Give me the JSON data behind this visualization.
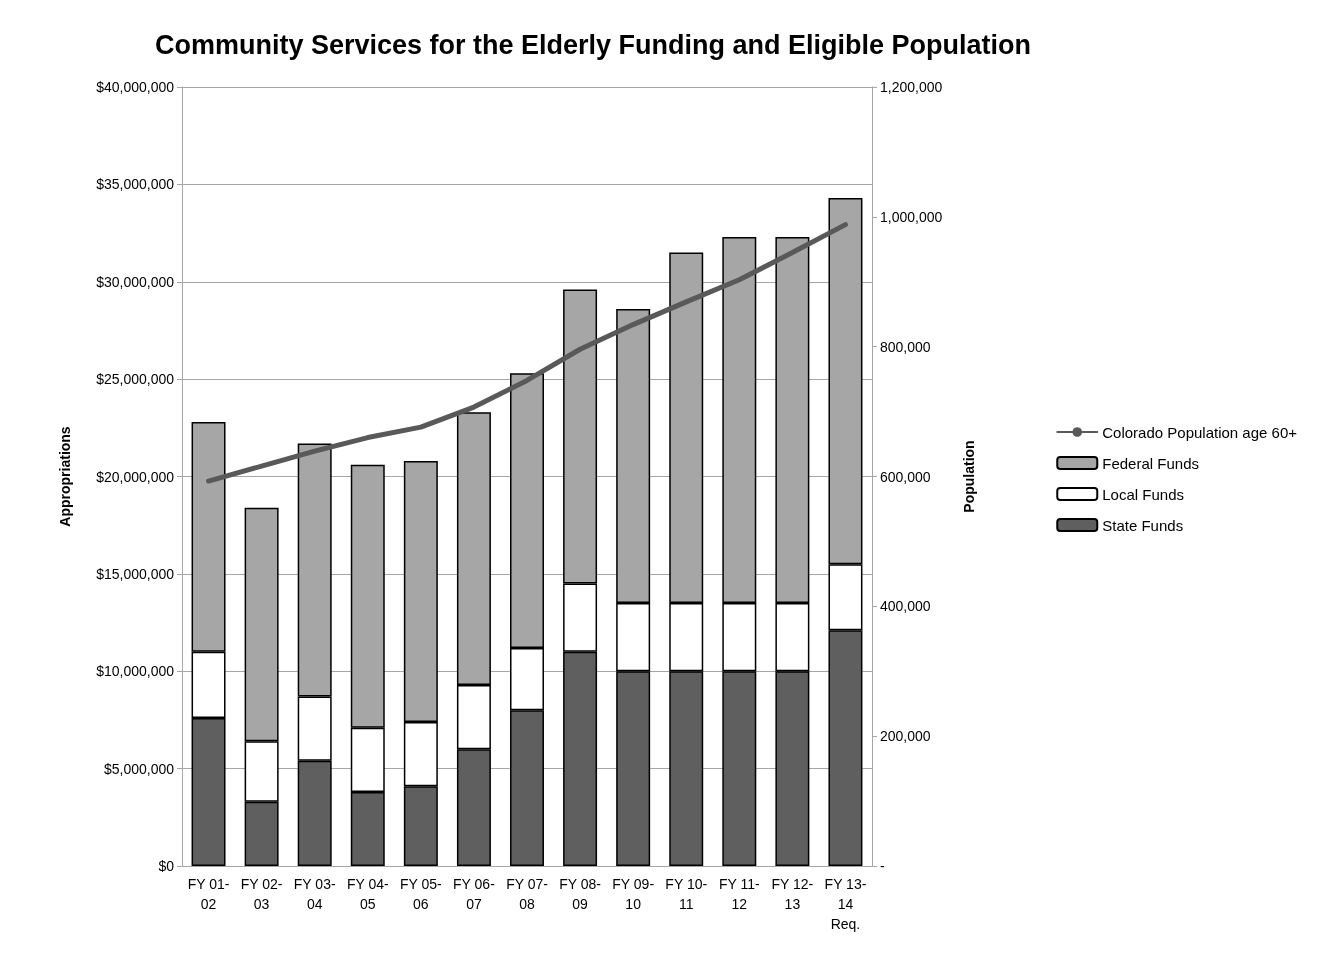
{
  "chart_data": {
    "type": "bar",
    "title": "Community Services for the Elderly Funding and Eligible Population",
    "ylabel": "Appropriations",
    "y2label": "Population",
    "categories": [
      "FY 01-02",
      "FY 02-03",
      "FY 03-04",
      "FY 04-05",
      "FY 05-06",
      "FY 06-07",
      "FY 07-08",
      "FY 08-09",
      "FY 09-10",
      "FY 10-11",
      "FY 11-12",
      "FY 12-13",
      "FY 13-14 Req."
    ],
    "stacked": true,
    "series": [
      {
        "name": "State Funds",
        "color": "#5f5f5f",
        "values": [
          7600000,
          3300000,
          5400000,
          3800000,
          4100000,
          6000000,
          8000000,
          11000000,
          10000000,
          10000000,
          10000000,
          10000000,
          12100000
        ]
      },
      {
        "name": "Local Funds",
        "color": "#ffffff",
        "values": [
          3400000,
          3100000,
          3300000,
          3300000,
          3300000,
          3300000,
          3200000,
          3500000,
          3500000,
          3500000,
          3500000,
          3500000,
          3400000
        ]
      },
      {
        "name": "Federal Funds",
        "color": "#a6a6a6",
        "values": [
          11800000,
          12000000,
          13000000,
          13500000,
          13400000,
          14000000,
          14100000,
          15100000,
          15100000,
          18000000,
          18800000,
          18800000,
          18800000
        ]
      },
      {
        "name": "Colorado Population age 60+",
        "type": "line",
        "axis": "y2",
        "color": "#595959",
        "values": [
          593000,
          616000,
          639000,
          660000,
          676000,
          707000,
          748000,
          796000,
          834000,
          869000,
          903000,
          945000,
          988000
        ]
      }
    ],
    "ylim": [
      0,
      40000000
    ],
    "yticks": [
      {
        "value": 0,
        "label": "$0"
      },
      {
        "value": 5000000,
        "label": "$5,000,000"
      },
      {
        "value": 10000000,
        "label": "$10,000,000"
      },
      {
        "value": 15000000,
        "label": "$15,000,000"
      },
      {
        "value": 20000000,
        "label": "$20,000,000"
      },
      {
        "value": 25000000,
        "label": "$25,000,000"
      },
      {
        "value": 30000000,
        "label": "$30,000,000"
      },
      {
        "value": 35000000,
        "label": "$35,000,000"
      },
      {
        "value": 40000000,
        "label": "$40,000,000"
      }
    ],
    "y2lim": [
      0,
      1200000
    ],
    "y2ticks": [
      {
        "value": 0,
        "label": "-"
      },
      {
        "value": 200000,
        "label": "200,000"
      },
      {
        "value": 400000,
        "label": "400,000"
      },
      {
        "value": 600000,
        "label": "600,000"
      },
      {
        "value": 800000,
        "label": "800,000"
      },
      {
        "value": 1000000,
        "label": "1,000,000"
      },
      {
        "value": 1200000,
        "label": "1,200,000"
      }
    ],
    "grid": "y",
    "legend": "right",
    "marker": "none",
    "line_style": "solid"
  }
}
